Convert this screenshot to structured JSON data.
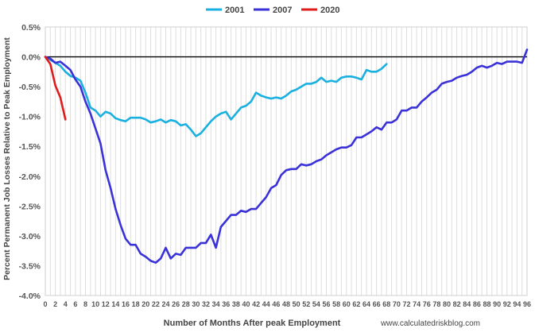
{
  "chart_data": {
    "type": "line",
    "xlabel": "Number of Months After peak Employment",
    "ylabel": "Percent Permanent Job Losses Relative to Peak Employment",
    "source": "www.calculatedriskblog.com",
    "xlim": [
      0,
      96
    ],
    "ylim": [
      -4.0,
      0.5
    ],
    "x_tick_labels": [
      "0",
      "2",
      "4",
      "6",
      "8",
      "10",
      "12",
      "14",
      "16",
      "18",
      "20",
      "22",
      "24",
      "26",
      "28",
      "30",
      "32",
      "34",
      "36",
      "38",
      "40",
      "42",
      "44",
      "46",
      "48",
      "50",
      "52",
      "54",
      "56",
      "58",
      "60",
      "62",
      "64",
      "66",
      "68",
      "70",
      "72",
      "74",
      "76",
      "78",
      "80",
      "82",
      "84",
      "86",
      "88",
      "90",
      "92",
      "94",
      "96"
    ],
    "x_tick_values": [
      0,
      2,
      4,
      6,
      8,
      10,
      12,
      14,
      16,
      18,
      20,
      22,
      24,
      26,
      28,
      30,
      32,
      34,
      36,
      38,
      40,
      42,
      44,
      46,
      48,
      50,
      52,
      54,
      56,
      58,
      60,
      62,
      64,
      66,
      68,
      70,
      72,
      74,
      76,
      78,
      80,
      82,
      84,
      86,
      88,
      90,
      92,
      94,
      96
    ],
    "y_ticks": [
      {
        "value": 0.5,
        "label": "0.5%"
      },
      {
        "value": 0.0,
        "label": "0.0%"
      },
      {
        "value": -0.5,
        "label": "-0.5%"
      },
      {
        "value": -1.0,
        "label": "-1.0%"
      },
      {
        "value": -1.5,
        "label": "-1.5%"
      },
      {
        "value": -2.0,
        "label": "-2.0%"
      },
      {
        "value": -2.5,
        "label": "-2.5%"
      },
      {
        "value": -3.0,
        "label": "-3.0%"
      },
      {
        "value": -3.5,
        "label": "-3.5%"
      },
      {
        "value": -4.0,
        "label": "-4.0%"
      }
    ],
    "grid": "vertical",
    "legend_position": "top",
    "series": [
      {
        "name": "2001",
        "color": "#1ab0e0",
        "x": [
          0,
          1,
          2,
          3,
          4,
          5,
          6,
          7,
          8,
          9,
          10,
          11,
          12,
          13,
          14,
          15,
          16,
          17,
          18,
          19,
          20,
          21,
          22,
          23,
          24,
          25,
          26,
          27,
          28,
          29,
          30,
          31,
          32,
          33,
          34,
          35,
          36,
          37,
          38,
          39,
          40,
          41,
          42,
          43,
          44,
          45,
          46,
          47,
          48,
          49,
          50,
          51,
          52,
          53,
          54,
          55,
          56,
          57,
          58,
          59,
          60,
          61,
          62,
          63,
          64,
          65,
          66,
          67,
          68
        ],
        "values": [
          0,
          -0.05,
          -0.1,
          -0.15,
          -0.25,
          -0.32,
          -0.35,
          -0.4,
          -0.6,
          -0.85,
          -0.9,
          -1.0,
          -0.92,
          -0.95,
          -1.03,
          -1.06,
          -1.08,
          -1.02,
          -1.02,
          -1.02,
          -1.05,
          -1.1,
          -1.08,
          -1.05,
          -1.1,
          -1.06,
          -1.08,
          -1.15,
          -1.13,
          -1.22,
          -1.33,
          -1.28,
          -1.18,
          -1.08,
          -1.0,
          -0.95,
          -0.92,
          -1.05,
          -0.95,
          -0.85,
          -0.82,
          -0.75,
          -0.6,
          -0.65,
          -0.68,
          -0.7,
          -0.68,
          -0.7,
          -0.65,
          -0.58,
          -0.55,
          -0.5,
          -0.45,
          -0.45,
          -0.42,
          -0.35,
          -0.42,
          -0.4,
          -0.42,
          -0.35,
          -0.33,
          -0.33,
          -0.35,
          -0.38,
          -0.22,
          -0.25,
          -0.25,
          -0.2,
          -0.12
        ]
      },
      {
        "name": "2007",
        "color": "#3a32d8",
        "x": [
          0,
          1,
          2,
          3,
          4,
          5,
          6,
          7,
          8,
          9,
          10,
          11,
          12,
          13,
          14,
          15,
          16,
          17,
          18,
          19,
          20,
          21,
          22,
          23,
          24,
          25,
          26,
          27,
          28,
          29,
          30,
          31,
          32,
          33,
          34,
          35,
          36,
          37,
          38,
          39,
          40,
          41,
          42,
          43,
          44,
          45,
          46,
          47,
          48,
          49,
          50,
          51,
          52,
          53,
          54,
          55,
          56,
          57,
          58,
          59,
          60,
          61,
          62,
          63,
          64,
          65,
          66,
          67,
          68,
          69,
          70,
          71,
          72,
          73,
          74,
          75,
          76,
          77,
          78,
          79,
          80,
          81,
          82,
          83,
          84,
          85,
          86,
          87,
          88,
          89,
          90,
          91,
          92,
          93,
          94,
          95,
          96
        ],
        "values": [
          0,
          -0.03,
          -0.1,
          -0.08,
          -0.15,
          -0.22,
          -0.38,
          -0.5,
          -0.75,
          -0.95,
          -1.2,
          -1.45,
          -1.9,
          -2.2,
          -2.55,
          -2.82,
          -3.05,
          -3.15,
          -3.15,
          -3.3,
          -3.35,
          -3.42,
          -3.45,
          -3.38,
          -3.2,
          -3.38,
          -3.3,
          -3.32,
          -3.2,
          -3.2,
          -3.2,
          -3.12,
          -3.12,
          -2.98,
          -3.2,
          -2.85,
          -2.75,
          -2.65,
          -2.65,
          -2.58,
          -2.6,
          -2.55,
          -2.55,
          -2.45,
          -2.35,
          -2.2,
          -2.15,
          -1.98,
          -1.9,
          -1.88,
          -1.88,
          -1.8,
          -1.82,
          -1.8,
          -1.75,
          -1.72,
          -1.65,
          -1.6,
          -1.55,
          -1.52,
          -1.52,
          -1.48,
          -1.35,
          -1.35,
          -1.3,
          -1.25,
          -1.18,
          -1.22,
          -1.1,
          -1.1,
          -1.05,
          -0.9,
          -0.9,
          -0.85,
          -0.85,
          -0.75,
          -0.68,
          -0.6,
          -0.55,
          -0.45,
          -0.42,
          -0.4,
          -0.35,
          -0.32,
          -0.3,
          -0.25,
          -0.18,
          -0.15,
          -0.18,
          -0.15,
          -0.1,
          -0.12,
          -0.08,
          -0.08,
          -0.08,
          -0.1,
          0.12
        ]
      },
      {
        "name": "2020",
        "color": "#e01b1b",
        "x": [
          0,
          1,
          2,
          3,
          4
        ],
        "values": [
          0,
          -0.12,
          -0.48,
          -0.68,
          -1.05
        ]
      }
    ]
  }
}
